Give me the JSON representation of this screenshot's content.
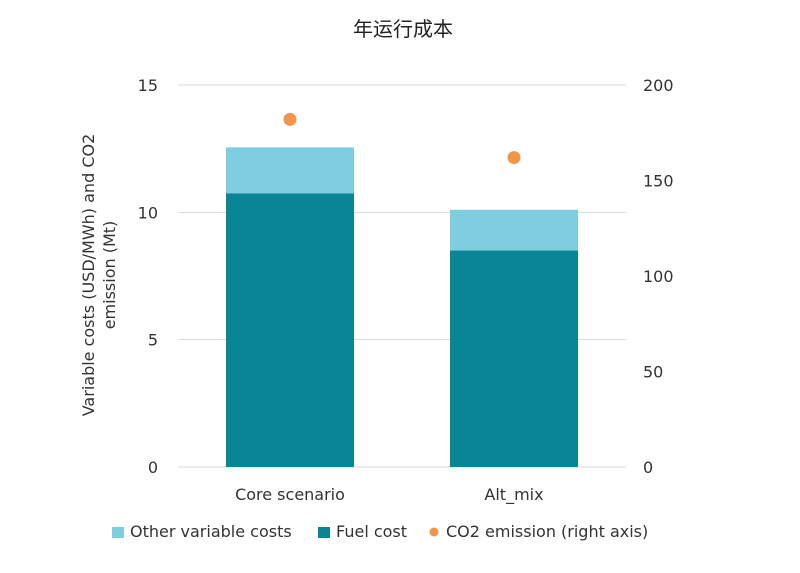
{
  "chart_data": {
    "type": "bar",
    "title": "年运行成本",
    "ylabel_lines": [
      "Variable costs (USD/MWh) and CO2",
      "emission (Mt)"
    ],
    "categories": [
      "Core scenario",
      "Alt_mix"
    ],
    "ylim": [
      0,
      15
    ],
    "yticks": [
      0,
      5,
      10,
      15
    ],
    "y2lim": [
      0,
      200
    ],
    "y2ticks": [
      0,
      50,
      100,
      150,
      200
    ],
    "stacked": true,
    "series": [
      {
        "name": "Fuel cost",
        "axis": "left",
        "values": [
          10.75,
          8.5
        ],
        "color": "#0a8497"
      },
      {
        "name": "Other variable costs",
        "axis": "left",
        "values": [
          1.8,
          1.6
        ],
        "color": "#7ecde0"
      },
      {
        "name": "CO2 emission (right axis)",
        "axis": "right",
        "kind": "scatter",
        "values": [
          182,
          162
        ],
        "color": "#f0954a"
      }
    ],
    "legend": {
      "position": "bottom",
      "order": [
        "Other variable costs",
        "Fuel cost",
        "CO2 emission (right axis)"
      ]
    },
    "grid": true
  }
}
